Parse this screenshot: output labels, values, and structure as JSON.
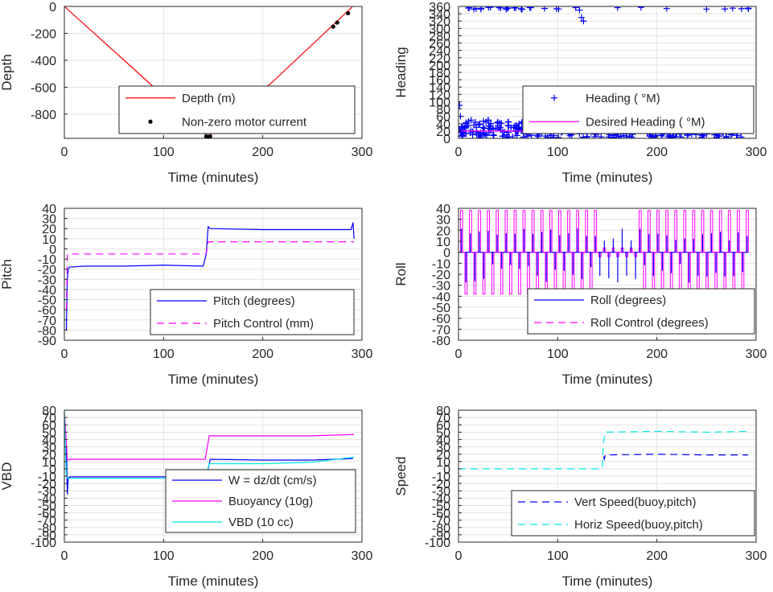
{
  "chart_data": [
    {
      "type": "line",
      "xlabel": "Time (minutes)",
      "ylabel": "Depth",
      "xlim": [
        0,
        300
      ],
      "ylim": [
        -980,
        0
      ],
      "xticks": [
        0,
        100,
        200,
        300
      ],
      "yticks": [
        0,
        -200,
        -400,
        -600,
        -800
      ],
      "grid": true,
      "legend": "center-bottom",
      "series": [
        {
          "name": "Depth (m)",
          "style": "line",
          "color": "#ff0000",
          "x": [
            0,
            72,
            145,
            210,
            290
          ],
          "y": [
            0,
            -478,
            -967,
            -560,
            -5
          ]
        },
        {
          "name": "Non-zero motor current",
          "style": "dot",
          "color": "#000000",
          "x": [
            143,
            145,
            147,
            271,
            275,
            286
          ],
          "y": [
            -965,
            -967,
            -965,
            -150,
            -120,
            -50
          ]
        }
      ]
    },
    {
      "type": "scatter",
      "xlabel": "Time (minutes)",
      "ylabel": "Heading",
      "xlim": [
        0,
        300
      ],
      "ylim": [
        0,
        360
      ],
      "xticks": [
        0,
        100,
        200,
        300
      ],
      "yticks": [
        0,
        20,
        40,
        60,
        80,
        100,
        120,
        140,
        160,
        180,
        200,
        220,
        240,
        260,
        280,
        300,
        320,
        340,
        360
      ],
      "grid": true,
      "legend": "right",
      "series": [
        {
          "name": "Heading ( °M)",
          "style": "plus",
          "color": "#0000ff",
          "x": [
            1,
            2,
            3,
            5,
            8,
            12,
            18,
            25,
            30,
            35,
            42,
            50,
            58,
            65,
            72,
            80,
            88,
            95,
            102,
            110,
            118,
            122,
            124,
            126,
            130,
            138,
            145,
            150,
            158,
            165,
            175,
            185,
            195,
            205,
            215,
            225,
            235,
            245,
            255,
            265,
            275,
            285,
            292
          ],
          "y": [
            90,
            60,
            30,
            20,
            40,
            15,
            30,
            20,
            50,
            25,
            30,
            355,
            20,
            30,
            45,
            25,
            35,
            110,
            30,
            25,
            40,
            350,
            330,
            320,
            60,
            30,
            135,
            40,
            25,
            35,
            20,
            30,
            45,
            25,
            30,
            20,
            35,
            25,
            40,
            20,
            30,
            25,
            355
          ]
        },
        {
          "name": "Desired Heading ( °M)",
          "style": "line",
          "color": "#ff00ff",
          "x": [
            0,
            292
          ],
          "y": [
            20,
            20
          ]
        }
      ]
    },
    {
      "type": "line",
      "xlabel": "Time (minutes)",
      "ylabel": "Pitch",
      "xlim": [
        0,
        300
      ],
      "ylim": [
        -90,
        40
      ],
      "xticks": [
        0,
        100,
        200,
        300
      ],
      "yticks": [
        40,
        30,
        20,
        10,
        0,
        -10,
        -20,
        -30,
        -40,
        -50,
        -60,
        -70,
        -80,
        -90
      ],
      "grid": true,
      "legend": "bottom-right",
      "series": [
        {
          "name": "Pitch (degrees)",
          "style": "line",
          "color": "#0000ff",
          "x": [
            2,
            3,
            4,
            5,
            20,
            60,
            100,
            140,
            143,
            145,
            147,
            200,
            250,
            289,
            291,
            292
          ],
          "y": [
            -80,
            -30,
            -20,
            -18,
            -17,
            -17,
            -16,
            -17,
            -5,
            22,
            20,
            19,
            19,
            19,
            26,
            10
          ]
        },
        {
          "name": "Pitch Control (mm)",
          "style": "dash",
          "color": "#ff00ff",
          "x": [
            2,
            3,
            12,
            143,
            145,
            147,
            292
          ],
          "y": [
            -60,
            -5,
            -5,
            -5,
            7,
            7,
            7
          ]
        }
      ]
    },
    {
      "type": "line",
      "xlabel": "Time (minutes)",
      "ylabel": "Roll",
      "xlim": [
        0,
        300
      ],
      "ylim": [
        -80,
        40
      ],
      "xticks": [
        0,
        100,
        200,
        300
      ],
      "yticks": [
        40,
        30,
        20,
        10,
        0,
        -10,
        -20,
        -30,
        -40,
        -50,
        -60,
        -70,
        -80
      ],
      "grid": true,
      "legend": "bottom-right",
      "series": [
        {
          "name": "Roll (degrees)",
          "style": "line",
          "color": "#0000ff",
          "x": [
            0,
            292
          ],
          "y": [
            0,
            0
          ]
        },
        {
          "name": "Roll Control (degrees)",
          "style": "dash",
          "color": "#ff00ff",
          "x": [
            0,
            292
          ],
          "y": [
            0,
            0
          ]
        }
      ]
    },
    {
      "type": "line",
      "xlabel": "Time (minutes)",
      "ylabel": "VBD",
      "xlim": [
        0,
        300
      ],
      "ylim": [
        -100,
        80
      ],
      "xticks": [
        0,
        100,
        200,
        300
      ],
      "yticks": [
        80,
        70,
        60,
        50,
        40,
        30,
        20,
        10,
        0,
        -10,
        -20,
        -30,
        -40,
        -50,
        -60,
        -70,
        -80,
        -90,
        -100
      ],
      "grid": true,
      "legend": "bottom-right",
      "series": [
        {
          "name": "W = dz/dt (cm/s)",
          "style": "line",
          "color": "#0000ff",
          "x": [
            2,
            3,
            4,
            6,
            50,
            100,
            143,
            145,
            147,
            200,
            250,
            291
          ],
          "y": [
            30,
            -35,
            -12,
            -11,
            -11,
            -11,
            -11,
            0,
            13,
            12,
            12,
            14
          ]
        },
        {
          "name": "Buoyancy (10g)",
          "style": "line",
          "color": "#ff00ff",
          "x": [
            0,
            1,
            3,
            6,
            100,
            142,
            146,
            200,
            250,
            292
          ],
          "y": [
            75,
            60,
            12,
            13,
            13,
            13,
            45,
            45,
            45,
            47
          ]
        },
        {
          "name": "VBD (10 cc)",
          "style": "line",
          "color": "#00e5e5",
          "x": [
            0,
            1,
            2,
            4,
            100,
            142,
            146,
            200,
            250,
            292
          ],
          "y": [
            80,
            30,
            -10,
            -13,
            -13,
            -13,
            7,
            7,
            9,
            16
          ]
        }
      ]
    },
    {
      "type": "line",
      "xlabel": "Time (minutes)",
      "ylabel": "Speed",
      "xlim": [
        0,
        300
      ],
      "ylim": [
        -100,
        80
      ],
      "xticks": [
        0,
        100,
        200,
        300
      ],
      "yticks": [
        80,
        70,
        60,
        50,
        40,
        30,
        20,
        10,
        0,
        -10,
        -20,
        -30,
        -40,
        -50,
        -60,
        -70,
        -80,
        -90,
        -100
      ],
      "grid": true,
      "legend": "bottom-right",
      "series": [
        {
          "name": "Vert Speed(buoy,pitch)",
          "style": "dash",
          "color": "#0000ff",
          "x": [
            146,
            147,
            148,
            200,
            250,
            292
          ],
          "y": [
            17,
            13,
            19,
            20,
            19,
            19
          ]
        },
        {
          "name": "Horiz Speed(buoy,pitch)",
          "style": "dash",
          "color": "#00e5e5",
          "x": [
            0,
            144,
            145,
            146,
            148,
            200,
            250,
            292
          ],
          "y": [
            0,
            0,
            3,
            35,
            50,
            51,
            50,
            51
          ]
        }
      ]
    }
  ]
}
